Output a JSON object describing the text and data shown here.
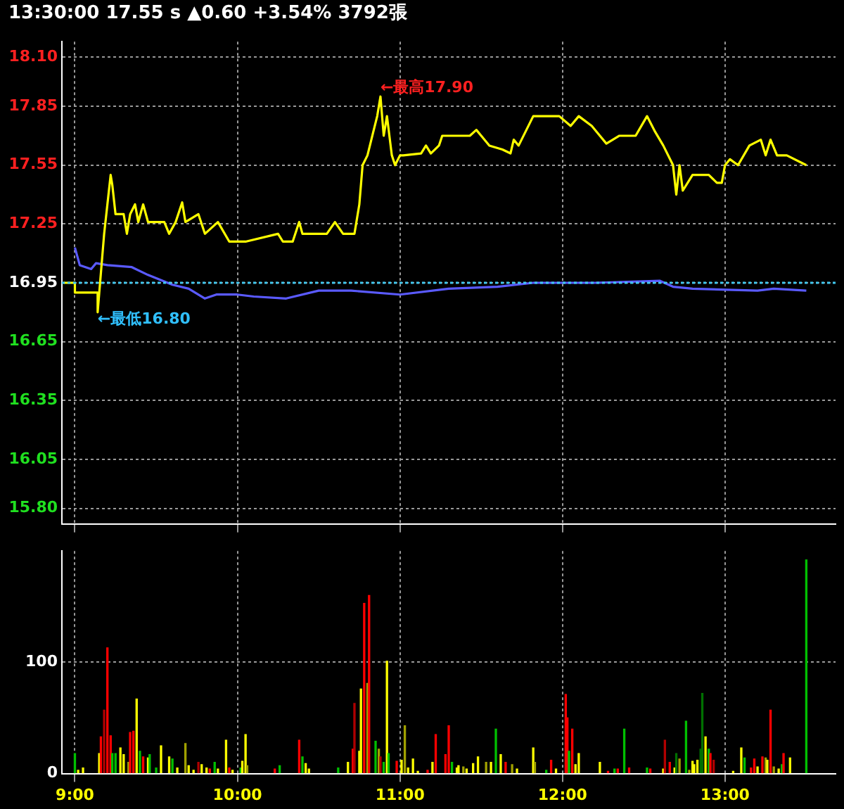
{
  "chart_data": [
    {
      "type": "line",
      "title": "13:30:00 17.55 s ▲0.60 +3.54% 3792張",
      "xlim": [
        8.92,
        13.68
      ],
      "xticks": [
        {
          "value": 9,
          "label": null
        },
        {
          "value": 10,
          "label": null
        },
        {
          "value": 11,
          "label": null
        },
        {
          "value": 12,
          "label": null
        },
        {
          "value": 13,
          "label": null
        }
      ],
      "ylim": [
        15.72,
        18.18
      ],
      "yticks": [
        {
          "value": 18.1,
          "label": "18.10"
        },
        17.85,
        17.55,
        17.25,
        16.95,
        16.65,
        16.35,
        16.05,
        {
          "value": 15.8,
          "label": "15.80"
        }
      ],
      "tick_labels": "y",
      "grid": true,
      "marker": "none",
      "line_style": "solid",
      "series": [
        {
          "color": "#ffff00",
          "x": [
            8.93,
            9.0,
            9.0,
            9.14,
            9.14,
            9.15,
            9.18,
            9.2,
            9.22,
            9.23,
            9.25,
            9.3,
            9.32,
            9.34,
            9.37,
            9.39,
            9.42,
            9.45,
            9.55,
            9.58,
            9.62,
            9.66,
            9.68,
            9.76,
            9.8,
            9.88,
            9.95,
            10.05,
            10.25,
            10.28,
            10.34,
            10.38,
            10.4,
            10.55,
            10.6,
            10.65,
            10.72,
            10.75,
            10.77,
            10.8,
            10.83,
            10.86,
            10.88,
            10.9,
            10.92,
            10.95,
            10.97,
            11.0,
            11.02,
            11.13,
            11.16,
            11.19,
            11.24,
            11.26,
            11.3,
            11.43,
            11.47,
            11.5,
            11.55,
            11.63,
            11.68,
            11.7,
            11.73,
            11.82,
            11.98,
            12.05,
            12.1,
            12.18,
            12.23,
            12.27,
            12.35,
            12.45,
            12.52,
            12.57,
            12.62,
            12.68,
            12.7,
            12.72,
            12.74,
            12.8,
            12.9,
            12.95,
            12.98,
            13.0,
            13.03,
            13.08,
            13.15,
            13.22,
            13.25,
            13.28,
            13.32,
            13.38,
            13.5
          ],
          "values": [
            16.95,
            16.95,
            16.9,
            16.9,
            16.8,
            16.9,
            17.2,
            17.35,
            17.5,
            17.45,
            17.3,
            17.3,
            17.2,
            17.3,
            17.35,
            17.26,
            17.35,
            17.26,
            17.26,
            17.2,
            17.26,
            17.36,
            17.26,
            17.3,
            17.2,
            17.26,
            17.16,
            17.16,
            17.2,
            17.16,
            17.16,
            17.26,
            17.2,
            17.2,
            17.26,
            17.2,
            17.2,
            17.35,
            17.55,
            17.6,
            17.7,
            17.8,
            17.9,
            17.7,
            17.8,
            17.6,
            17.55,
            17.6,
            17.6,
            17.61,
            17.65,
            17.61,
            17.65,
            17.7,
            17.7,
            17.7,
            17.73,
            17.7,
            17.65,
            17.63,
            17.61,
            17.68,
            17.65,
            17.8,
            17.8,
            17.75,
            17.8,
            17.75,
            17.7,
            17.66,
            17.7,
            17.7,
            17.8,
            17.72,
            17.65,
            17.55,
            17.4,
            17.55,
            17.42,
            17.5,
            17.5,
            17.46,
            17.46,
            17.55,
            17.58,
            17.55,
            17.65,
            17.68,
            17.6,
            17.68,
            17.6,
            17.6,
            17.55
          ]
        },
        {
          "color": "#5a5aff",
          "x": [
            9.0,
            9.03,
            9.1,
            9.13,
            9.2,
            9.35,
            9.45,
            9.6,
            9.7,
            9.8,
            9.87,
            10.0,
            10.1,
            10.3,
            10.5,
            10.7,
            11.0,
            11.3,
            11.6,
            11.82,
            12.2,
            12.6,
            12.68,
            12.8,
            13.2,
            13.3,
            13.5
          ],
          "values": [
            17.13,
            17.04,
            17.02,
            17.05,
            17.04,
            17.03,
            16.99,
            16.94,
            16.92,
            16.87,
            16.89,
            16.89,
            16.88,
            16.87,
            16.91,
            16.91,
            16.89,
            16.92,
            16.93,
            16.95,
            16.95,
            16.96,
            16.93,
            16.92,
            16.91,
            16.92,
            16.91
          ]
        }
      ],
      "ref_lines": [
        {
          "axis": "y",
          "value": 16.95,
          "color": "#40c8f0",
          "line_style": "dotted"
        }
      ],
      "annotations": [
        {
          "text": "←最高17.90",
          "x": 10.88,
          "y": 17.9
        },
        {
          "text": "←最低16.80",
          "x": 9.14,
          "y": 16.8
        }
      ]
    },
    {
      "type": "bar",
      "xlim": [
        8.92,
        13.68
      ],
      "xticks": [
        {
          "value": 9,
          "label": "9:00"
        },
        {
          "value": 10,
          "label": "10:00"
        },
        {
          "value": 11,
          "label": "11:00"
        },
        {
          "value": 12,
          "label": "12:00"
        },
        {
          "value": 13,
          "label": "13:00"
        }
      ],
      "ylim": [
        0,
        200
      ],
      "yticks": [
        0,
        100
      ],
      "grid": true,
      "x": [
        9.0,
        9.02,
        9.05,
        9.15,
        9.16,
        9.18,
        9.2,
        9.22,
        9.23,
        9.25,
        9.28,
        9.3,
        9.33,
        9.34,
        9.36,
        9.38,
        9.4,
        9.42,
        9.45,
        9.46,
        9.5,
        9.53,
        9.58,
        9.6,
        9.63,
        9.68,
        9.7,
        9.73,
        9.76,
        9.78,
        9.81,
        9.83,
        9.86,
        9.88,
        9.93,
        9.95,
        9.97,
        10.02,
        10.03,
        10.05,
        10.06,
        10.23,
        10.26,
        10.38,
        10.4,
        10.42,
        10.44,
        10.62,
        10.68,
        10.71,
        10.72,
        10.73,
        10.75,
        10.76,
        10.78,
        10.8,
        10.81,
        10.83,
        10.85,
        10.87,
        10.88,
        10.9,
        10.92,
        10.93,
        10.98,
        11.01,
        11.03,
        11.05,
        11.08,
        11.11,
        11.17,
        11.2,
        11.22,
        11.28,
        11.3,
        11.32,
        11.35,
        11.36,
        11.39,
        11.41,
        11.45,
        11.48,
        11.53,
        11.56,
        11.59,
        11.62,
        11.65,
        11.69,
        11.72,
        11.82,
        11.83,
        11.9,
        11.93,
        11.96,
        12.02,
        12.03,
        12.04,
        12.06,
        12.08,
        12.1,
        12.23,
        12.28,
        12.32,
        12.34,
        12.38,
        12.41,
        12.52,
        12.54,
        12.62,
        12.63,
        12.66,
        12.69,
        12.7,
        12.72,
        12.76,
        12.78,
        12.8,
        12.81,
        12.83,
        12.85,
        12.86,
        12.88,
        12.9,
        12.91,
        12.93,
        13.05,
        13.1,
        13.12,
        13.16,
        13.18,
        13.2,
        13.23,
        13.25,
        13.26,
        13.28,
        13.3,
        13.33,
        13.35,
        13.36,
        13.4,
        13.5
      ],
      "values": [
        18,
        3,
        5,
        18,
        33,
        57,
        113,
        34,
        18,
        18,
        23,
        17,
        10,
        37,
        38,
        67,
        20,
        15,
        14,
        17,
        5,
        25,
        15,
        13,
        5,
        27,
        7,
        3,
        10,
        8,
        5,
        4,
        10,
        4,
        30,
        5,
        3,
        5,
        11,
        35,
        7,
        4,
        7,
        30,
        15,
        9,
        4,
        5,
        10,
        22,
        63,
        null,
        20,
        76,
        153,
        81,
        160,
        null,
        29,
        22,
        15,
        10,
        101,
        18,
        11,
        12,
        43,
        5,
        13,
        2,
        3,
        10,
        35,
        17,
        43,
        10,
        5,
        7,
        6,
        4,
        9,
        15,
        10,
        10,
        40,
        17,
        10,
        8,
        4,
        23,
        10,
        3,
        12,
        4,
        71,
        50,
        20,
        40,
        8,
        18,
        10,
        2,
        4,
        4,
        40,
        5,
        5,
        4,
        4,
        30,
        10,
        5,
        18,
        13,
        47,
        3,
        11,
        8,
        12,
        22,
        72,
        33,
        22,
        18,
        12,
        2,
        23,
        14,
        5,
        13,
        6,
        15,
        14,
        12,
        57,
        6,
        4,
        8,
        18,
        14,
        192
      ],
      "colors": [
        "#00c000",
        "#ffff00",
        "#ffff00",
        "#ffff00",
        "#ff0000",
        "#b00000",
        "#ff0000",
        "#ff0000",
        "#00c000",
        "#00c000",
        "#ffff00",
        "#ffff00",
        "#a0a000",
        "#ff0000",
        "#ff0000",
        "#ffff00",
        "#00c000",
        "#ff0000",
        "#ffff00",
        "#00c000",
        "#00c000",
        "#ffff00",
        "#ffff00",
        "#00c000",
        "#ffff00",
        "#a0a000",
        "#ffff00",
        "#ffff00",
        "#b00000",
        "#ffff00",
        "#ffff00",
        "#ff0000",
        "#00c000",
        "#ffff00",
        "#ffff00",
        "#ff0000",
        "#ffff00",
        "#00c000",
        "#ffff00",
        "#ffff00",
        "#a0a000",
        "#ff0000",
        "#00c000",
        "#ff0000",
        "#00c000",
        "#ffff00",
        "#ffff00",
        "#00c000",
        "#ffff00",
        "#ff0000",
        "#b00000",
        "#ff0000",
        "#ffff00",
        "#ffff00",
        "#ff0000",
        "#a0a000",
        "#ff0000",
        "#ff0000",
        "#00c000",
        "#a0a000",
        "#b00000",
        "#00c000",
        "#ffff00",
        "#00c000",
        "#ff0000",
        "#ffff00",
        "#a0a000",
        "#ffff00",
        "#ffff00",
        "#ffff00",
        "#ff0000",
        "#ffff00",
        "#ff0000",
        "#ff0000",
        "#ff0000",
        "#00c000",
        "#ffff00",
        "#ffff00",
        "#a0a000",
        "#ffff00",
        "#ffff00",
        "#ffff00",
        "#a0a000",
        "#ffff00",
        "#00c000",
        "#ffff00",
        "#ff0000",
        "#a0a000",
        "#ffff00",
        "#ffff00",
        "#a0a000",
        "#00c000",
        "#ff0000",
        "#ffff00",
        "#ff0000",
        "#ff0000",
        "#00c000",
        "#ff0000",
        "#ffff00",
        "#ffff00",
        "#ffff00",
        "#ff0000",
        "#00c000",
        "#ff0000",
        "#00c000",
        "#ff0000",
        "#00c000",
        "#ff0000",
        "#ffff00",
        "#b00000",
        "#ff0000",
        "#ffff00",
        "#007000",
        "#a0a000",
        "#00c000",
        "#a0a000",
        "#ffff00",
        "#ffff00",
        "#ffff00",
        "#007000",
        "#007000",
        "#ffff00",
        "#00c000",
        "#ff0000",
        "#b00000",
        "#ffff00",
        "#ffff00",
        "#00c000",
        "#ff0000",
        "#ff0000",
        "#ffff00",
        "#ff0000",
        "#a0a000",
        "#ffff00",
        "#ff0000",
        "#a0a000",
        "#ffff00",
        "#00c000",
        "#ff0000",
        "#ffff00",
        "#00c000"
      ]
    }
  ]
}
